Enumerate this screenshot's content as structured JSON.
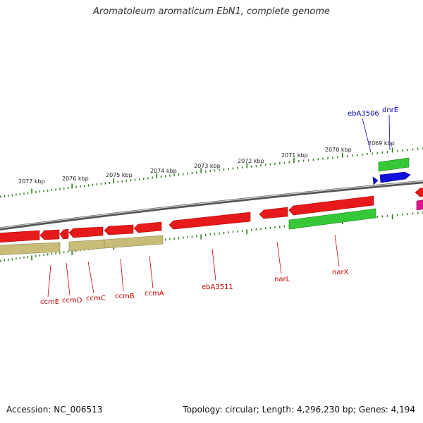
{
  "title": "Aromatoleum aromaticum EbN1, complete genome",
  "footer": {
    "accession": "Accession: NC_006513",
    "summary": "Topology: circular; Length: 4,296,230 bp; Genes: 4,194"
  },
  "colors": {
    "backbone": "#8a8a8a",
    "tick": "#2a7a12",
    "reverse_gene": "#e61a1a",
    "reverse_cds": "#c8bd78",
    "forward_gene": "#37c837",
    "forward_cds_blue": "#1010dd",
    "other_gene": "#e0148c",
    "label_reverse": "#cc0000",
    "label_forward": "#0000bb",
    "tick_label": "#222222"
  },
  "ticks": [
    "2077 kbp",
    "2076 kbp",
    "2075 kbp",
    "2074 kbp",
    "2073 kbp",
    "2072 kbp",
    "2071 kbp",
    "2070 kbp",
    "2069 kbp"
  ],
  "genes_reverse": [
    "ccmE",
    "ccmD",
    "ccmC",
    "ccmB",
    "ccmA",
    "ebA3511",
    "narL",
    "narX"
  ],
  "genes_forward": [
    "ebA3506",
    "dnrE"
  ]
}
